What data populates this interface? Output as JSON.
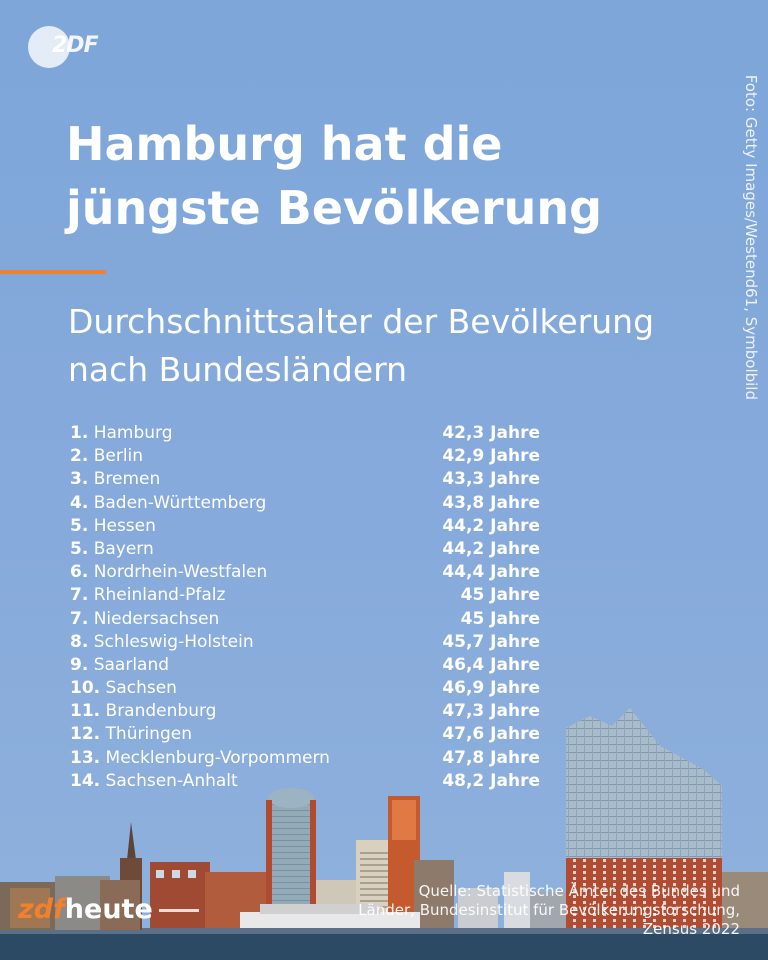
{
  "brand": {
    "logo_text": "2DF",
    "footer_logo_zdf": "zdf",
    "footer_logo_heute": "heute"
  },
  "photo_credit": "Foto: Getty Images/Westend61, Symbolbild",
  "headline": "Hamburg hat die jüngste Bevölkerung",
  "subtitle": "Durchschnittsalter der Bevölkerung nach Bundesländern",
  "ranking": [
    {
      "rank": "1.",
      "state": "Hamburg",
      "value": "42,3 Jahre"
    },
    {
      "rank": "2.",
      "state": "Berlin",
      "value": "42,9 Jahre"
    },
    {
      "rank": "3.",
      "state": "Bremen",
      "value": "43,3 Jahre"
    },
    {
      "rank": "4.",
      "state": "Baden-Württemberg",
      "value": "43,8 Jahre"
    },
    {
      "rank": "5.",
      "state": "Hessen",
      "value": "44,2 Jahre"
    },
    {
      "rank": "5.",
      "state": "Bayern",
      "value": "44,2 Jahre"
    },
    {
      "rank": "6.",
      "state": "Nordrhein-Westfalen",
      "value": "44,4 Jahre"
    },
    {
      "rank": "7.",
      "state": "Rheinland-Pfalz",
      "value": "45 Jahre"
    },
    {
      "rank": "7.",
      "state": "Niedersachsen",
      "value": "45 Jahre"
    },
    {
      "rank": "8.",
      "state": "Schleswig-Holstein",
      "value": "45,7 Jahre"
    },
    {
      "rank": "9.",
      "state": "Saarland",
      "value": "46,4 Jahre"
    },
    {
      "rank": "10.",
      "state": "Sachsen",
      "value": "46,9 Jahre"
    },
    {
      "rank": "11.",
      "state": "Brandenburg",
      "value": "47,3 Jahre"
    },
    {
      "rank": "12.",
      "state": "Thüringen",
      "value": "47,6 Jahre"
    },
    {
      "rank": "13.",
      "state": "Mecklenburg-Vorpommern",
      "value": "47,8 Jahre"
    },
    {
      "rank": "14.",
      "state": "Sachsen-Anhalt",
      "value": "48,2 Jahre"
    }
  ],
  "source_lines": [
    "Quelle: Statistische Ämter des Bundes und",
    "Länder, Bundesinstitut für Bevölkerungsforschung,",
    "Zensus 2022"
  ],
  "colors": {
    "sky": "#84a9d8",
    "accent": "#f0812d",
    "text": "#ffffff"
  }
}
